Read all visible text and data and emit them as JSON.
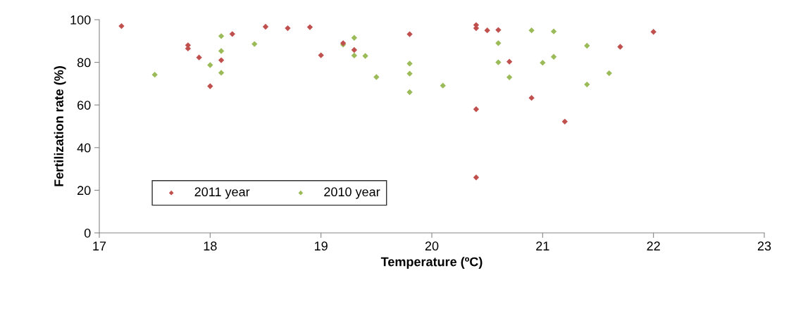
{
  "chart_data": {
    "type": "scatter",
    "xlabel": "Temperature (ºC)",
    "ylabel": "Fertilization rate (%)",
    "xlim": [
      17,
      23
    ],
    "xticks": [
      17,
      18,
      19,
      20,
      21,
      22,
      23
    ],
    "ylim": [
      0,
      100
    ],
    "yticks": [
      0,
      20,
      40,
      60,
      80,
      100
    ],
    "grid": false,
    "legend": "bottom left",
    "marker": "diamond",
    "series": [
      {
        "name": "2011 year",
        "color": "#c0504d",
        "x": [
          17.2,
          17.8,
          17.8,
          17.9,
          18.0,
          18.1,
          18.2,
          18.5,
          18.7,
          18.9,
          19.0,
          19.2,
          19.3,
          19.8,
          20.4,
          20.4,
          20.4,
          20.4,
          20.5,
          20.6,
          20.7,
          20.9,
          21.2,
          21.7,
          22.0
        ],
        "values": [
          97,
          88,
          86.5,
          82.3,
          68.8,
          81,
          93.3,
          96.7,
          96,
          96.5,
          83.3,
          89,
          85.8,
          93.2,
          97.5,
          96,
          58,
          26,
          95,
          95.2,
          80.3,
          63.3,
          52.2,
          87.3,
          94.3
        ]
      },
      {
        "name": "2010 year",
        "color": "#9bbb59",
        "x": [
          17.5,
          18.0,
          18.1,
          18.1,
          18.1,
          18.4,
          19.2,
          19.3,
          19.3,
          19.4,
          19.5,
          19.8,
          19.8,
          19.8,
          20.1,
          20.6,
          20.6,
          20.7,
          20.9,
          21.0,
          21.1,
          21.1,
          21.4,
          21.4,
          21.6
        ],
        "values": [
          74.2,
          78.7,
          92.3,
          85.3,
          75.1,
          88.6,
          88.3,
          91.5,
          83.2,
          83,
          73.1,
          79.4,
          74.7,
          66,
          69.1,
          89,
          80,
          73,
          95,
          79.8,
          94.5,
          82.6,
          87.8,
          69.6,
          74.9
        ]
      }
    ]
  }
}
